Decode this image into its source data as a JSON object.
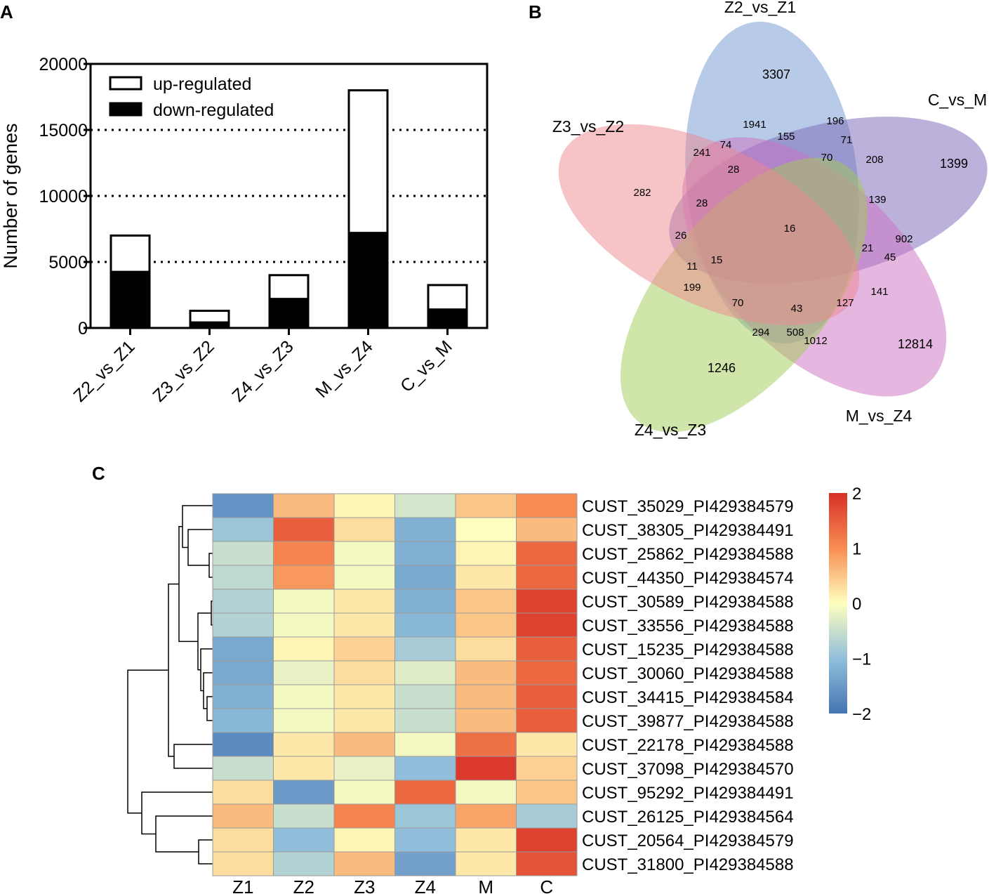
{
  "panels": {
    "a": "A",
    "b": "B",
    "c": "C"
  },
  "chart_data": [
    {
      "type": "bar",
      "stacked": true,
      "ylabel": "Number of genes",
      "ylim": [
        0,
        20000
      ],
      "yticks": [
        "0",
        "5000",
        "10000",
        "15000",
        "20000"
      ],
      "ytick_values": [
        0,
        5000,
        10000,
        15000,
        20000
      ],
      "grid_values": [
        5000,
        10000,
        15000
      ],
      "categories": [
        "Z2_vs_Z1",
        "Z3_vs_Z2",
        "Z4_vs_Z3",
        "M_vs_Z4",
        "C_vs_M"
      ],
      "series": [
        {
          "name": "down-regulated",
          "color": "#000000",
          "values": [
            4250,
            420,
            2200,
            7200,
            1400
          ]
        },
        {
          "name": "up-regulated",
          "color": "#ffffff",
          "values": [
            2750,
            880,
            1800,
            10800,
            1850
          ]
        }
      ],
      "legend": {
        "position": "top-left",
        "items": [
          "up-regulated",
          "down-regulated"
        ]
      }
    },
    {
      "type": "venn",
      "sets": [
        {
          "name": "Z2_vs_Z1",
          "color": "#6f95cf"
        },
        {
          "name": "C_vs_M",
          "color": "#7a64b5"
        },
        {
          "name": "M_vs_Z4",
          "color": "#cc6fc2"
        },
        {
          "name": "Z4_vs_Z3",
          "color": "#a2cb54"
        },
        {
          "name": "Z3_vs_Z2",
          "color": "#ee8890"
        }
      ],
      "regions": [
        "3307",
        "1399",
        "12814",
        "1246",
        "282",
        "1941",
        "155",
        "196",
        "71",
        "70",
        "208",
        "139",
        "902",
        "241",
        "74",
        "28",
        "28",
        "26",
        "16",
        "21",
        "45",
        "141",
        "127",
        "43",
        "1012",
        "508",
        "294",
        "70",
        "199",
        "11",
        "15"
      ]
    },
    {
      "type": "heatmap",
      "columns": [
        "Z1",
        "Z2",
        "Z3",
        "Z4",
        "M",
        "C"
      ],
      "rows": [
        "CUST_35029_PI429384579",
        "CUST_38305_PI429384491",
        "CUST_25862_PI429384588",
        "CUST_44350_PI429384574",
        "CUST_30589_PI429384588",
        "CUST_33556_PI429384588",
        "CUST_15235_PI429384588",
        "CUST_30060_PI429384588",
        "CUST_34415_PI429384584",
        "CUST_39877_PI429384588",
        "CUST_22178_PI429384588",
        "CUST_37098_PI429384570",
        "CUST_95292_PI429384491",
        "CUST_26125_PI429384564",
        "CUST_20564_PI429384579",
        "CUST_31800_PI429384588"
      ],
      "values": [
        [
          -1.6,
          0.6,
          0.1,
          -0.4,
          0.5,
          1.0
        ],
        [
          -0.9,
          1.5,
          0.3,
          -1.2,
          0.0,
          0.6
        ],
        [
          -0.5,
          1.1,
          -0.1,
          -1.2,
          0.1,
          1.4
        ],
        [
          -0.6,
          0.9,
          -0.1,
          -1.3,
          0.2,
          1.4
        ],
        [
          -0.7,
          -0.1,
          0.2,
          -1.2,
          0.5,
          1.8
        ],
        [
          -0.7,
          -0.1,
          0.2,
          -1.1,
          0.5,
          1.8
        ],
        [
          -1.3,
          0.1,
          0.4,
          -0.8,
          0.3,
          1.5
        ],
        [
          -1.3,
          -0.2,
          0.3,
          -0.3,
          0.6,
          1.4
        ],
        [
          -1.2,
          -0.1,
          0.2,
          -0.5,
          0.6,
          1.5
        ],
        [
          -1.1,
          -0.1,
          0.2,
          -0.5,
          0.6,
          1.5
        ],
        [
          -1.7,
          0.2,
          0.6,
          -0.1,
          1.3,
          0.2
        ],
        [
          -0.5,
          0.2,
          -0.2,
          -1.0,
          1.9,
          0.4
        ],
        [
          0.3,
          -1.5,
          -0.1,
          1.4,
          -0.1,
          0.5
        ],
        [
          0.6,
          -0.5,
          1.1,
          -0.9,
          0.8,
          -0.8
        ],
        [
          0.3,
          -1.0,
          0.1,
          -1.0,
          0.2,
          1.8
        ],
        [
          0.3,
          -0.7,
          0.6,
          -1.4,
          0.2,
          1.6
        ]
      ],
      "color_scale": {
        "min": -2,
        "max": 2,
        "ticks": [
          "2",
          "1",
          "0",
          "−1",
          "−2"
        ],
        "tick_values": [
          2,
          1,
          0,
          -1,
          -2
        ]
      }
    }
  ]
}
